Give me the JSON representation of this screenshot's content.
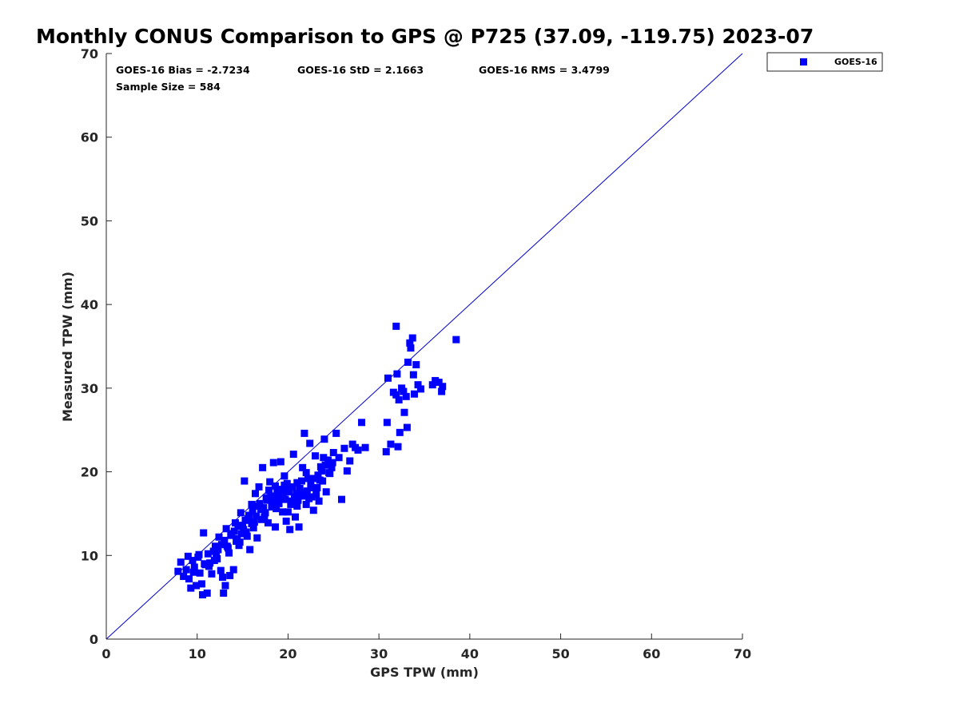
{
  "title": "Monthly CONUS Comparison to GPS @ P725 (37.09, -119.75) 2023-07",
  "stats": {
    "bias": "GOES-16 Bias = -2.7234",
    "std": "GOES-16 StD = 2.1663",
    "rms": "GOES-16 RMS = 3.4799",
    "sample": "Sample Size = 584"
  },
  "legend": {
    "label": "GOES-16"
  },
  "colors": {
    "series": "#0000ff",
    "line": "#0000cc",
    "axis": "#262626"
  },
  "chart_data": {
    "type": "scatter",
    "xlabel": "GPS TPW (mm)",
    "ylabel": "Measured TPW (mm)",
    "xlim": [
      0,
      70
    ],
    "ylim": [
      0,
      70
    ],
    "xticks": [
      0,
      10,
      20,
      30,
      40,
      50,
      60,
      70
    ],
    "yticks": [
      0,
      10,
      20,
      30,
      40,
      50,
      60,
      70
    ],
    "grid": false,
    "legend_position": "outside-top-right",
    "reference_line": {
      "type": "identity",
      "from": [
        0,
        0
      ],
      "to": [
        70,
        70
      ]
    },
    "series": [
      {
        "name": "GOES-16",
        "marker": "square",
        "points": [
          [
            7.9,
            8.1
          ],
          [
            8.2,
            9.2
          ],
          [
            8.5,
            7.5
          ],
          [
            8.8,
            8.3
          ],
          [
            9.1,
            7.2
          ],
          [
            9.3,
            6.1
          ],
          [
            9.5,
            9.4
          ],
          [
            9.7,
            8.6
          ],
          [
            9.9,
            6.4
          ],
          [
            10.1,
            9.8
          ],
          [
            10.3,
            7.9
          ],
          [
            10.5,
            6.6
          ],
          [
            10.6,
            5.3
          ],
          [
            10.7,
            12.7
          ],
          [
            10.9,
            8.9
          ],
          [
            11.1,
            5.5
          ],
          [
            11.2,
            10.2
          ],
          [
            11.4,
            9.1
          ],
          [
            11.6,
            7.8
          ],
          [
            11.8,
            10.5
          ],
          [
            12.0,
            11.1
          ],
          [
            12.2,
            9.6
          ],
          [
            12.4,
            12.2
          ],
          [
            12.6,
            8.2
          ],
          [
            12.8,
            7.4
          ],
          [
            12.9,
            5.5
          ],
          [
            13.0,
            11.8
          ],
          [
            13.1,
            6.4
          ],
          [
            13.2,
            13.2
          ],
          [
            13.4,
            10.9
          ],
          [
            13.6,
            7.6
          ],
          [
            13.8,
            12.6
          ],
          [
            14.0,
            8.3
          ],
          [
            14.2,
            13.9
          ],
          [
            14.4,
            12.0
          ],
          [
            14.6,
            11.2
          ],
          [
            14.8,
            15.1
          ],
          [
            15.0,
            13.6
          ],
          [
            15.2,
            18.9
          ],
          [
            15.4,
            12.8
          ],
          [
            15.6,
            14.4
          ],
          [
            15.8,
            10.7
          ],
          [
            16.0,
            16.1
          ],
          [
            16.2,
            13.3
          ],
          [
            16.4,
            17.4
          ],
          [
            16.6,
            12.1
          ],
          [
            16.8,
            18.2
          ],
          [
            17.0,
            15.5
          ],
          [
            17.2,
            20.5
          ],
          [
            17.4,
            14.6
          ],
          [
            17.6,
            16.9
          ],
          [
            17.8,
            13.9
          ],
          [
            18.0,
            18.8
          ],
          [
            18.2,
            15.8
          ],
          [
            18.4,
            21.1
          ],
          [
            18.6,
            13.4
          ],
          [
            18.8,
            17.6
          ],
          [
            19.0,
            16.2
          ],
          [
            19.2,
            21.2
          ],
          [
            19.4,
            15.2
          ],
          [
            19.6,
            18.4
          ],
          [
            19.8,
            14.1
          ],
          [
            20.0,
            17.9
          ],
          [
            20.2,
            13.1
          ],
          [
            20.4,
            16.5
          ],
          [
            20.6,
            22.1
          ],
          [
            20.8,
            14.6
          ],
          [
            21.0,
            18.7
          ],
          [
            21.2,
            13.4
          ],
          [
            21.4,
            17.2
          ],
          [
            21.6,
            20.5
          ],
          [
            21.8,
            24.6
          ],
          [
            22.0,
            16.1
          ],
          [
            22.2,
            19.2
          ],
          [
            22.4,
            23.4
          ],
          [
            22.6,
            17.0
          ],
          [
            22.8,
            15.4
          ],
          [
            23.0,
            21.9
          ],
          [
            23.2,
            18.1
          ],
          [
            23.4,
            16.5
          ],
          [
            23.6,
            20.6
          ],
          [
            23.8,
            18.9
          ],
          [
            24.0,
            23.9
          ],
          [
            24.2,
            17.6
          ],
          [
            24.4,
            21.4
          ],
          [
            24.6,
            19.8
          ],
          [
            24.8,
            20.5
          ],
          [
            25.0,
            22.3
          ],
          [
            25.3,
            24.6
          ],
          [
            25.6,
            21.7
          ],
          [
            25.9,
            16.7
          ],
          [
            26.2,
            22.8
          ],
          [
            26.5,
            20.1
          ],
          [
            26.8,
            21.3
          ],
          [
            27.1,
            23.3
          ],
          [
            27.4,
            22.9
          ],
          [
            27.7,
            22.6
          ],
          [
            28.1,
            25.9
          ],
          [
            28.5,
            22.9
          ],
          [
            30.8,
            22.4
          ],
          [
            30.9,
            25.9
          ],
          [
            31.0,
            31.2
          ],
          [
            31.3,
            23.3
          ],
          [
            31.6,
            29.5
          ],
          [
            31.9,
            29.2
          ],
          [
            31.9,
            37.4
          ],
          [
            32.0,
            31.7
          ],
          [
            32.1,
            23.0
          ],
          [
            32.2,
            28.6
          ],
          [
            32.3,
            24.7
          ],
          [
            32.5,
            30.0
          ],
          [
            32.7,
            29.6
          ],
          [
            32.8,
            27.1
          ],
          [
            33.0,
            29.0
          ],
          [
            33.1,
            25.3
          ],
          [
            33.2,
            33.1
          ],
          [
            33.4,
            35.4
          ],
          [
            33.5,
            34.8
          ],
          [
            33.7,
            36.0
          ],
          [
            33.8,
            31.6
          ],
          [
            33.9,
            29.3
          ],
          [
            34.1,
            32.8
          ],
          [
            34.3,
            30.4
          ],
          [
            34.6,
            29.9
          ],
          [
            35.9,
            30.4
          ],
          [
            36.2,
            30.9
          ],
          [
            36.6,
            30.7
          ],
          [
            36.9,
            29.6
          ],
          [
            37.0,
            30.2
          ],
          [
            38.5,
            35.8
          ],
          [
            9.0,
            9.9
          ],
          [
            9.6,
            8.0
          ],
          [
            10.2,
            10.1
          ],
          [
            10.8,
            9.0
          ],
          [
            11.3,
            8.7
          ],
          [
            11.9,
            9.4
          ],
          [
            12.3,
            10.7
          ],
          [
            12.7,
            11.3
          ],
          [
            13.3,
            11.1
          ],
          [
            13.7,
            12.4
          ],
          [
            14.1,
            12.9
          ],
          [
            14.5,
            13.5
          ],
          [
            14.9,
            12.6
          ],
          [
            15.3,
            14.2
          ],
          [
            15.7,
            14.8
          ],
          [
            16.1,
            15.3
          ],
          [
            16.5,
            14.7
          ],
          [
            16.9,
            16.2
          ],
          [
            17.3,
            15.7
          ],
          [
            17.7,
            16.6
          ],
          [
            18.1,
            17.1
          ],
          [
            18.5,
            16.8
          ],
          [
            18.9,
            17.3
          ],
          [
            19.3,
            17.9
          ],
          [
            19.7,
            16.7
          ],
          [
            20.1,
            17.6
          ],
          [
            20.5,
            18.2
          ],
          [
            20.9,
            17.4
          ],
          [
            21.3,
            18.0
          ],
          [
            21.7,
            17.1
          ],
          [
            22.1,
            17.7
          ],
          [
            22.5,
            18.5
          ],
          [
            22.9,
            19.2
          ],
          [
            23.3,
            19.6
          ],
          [
            23.7,
            20.1
          ],
          [
            24.1,
            20.8
          ],
          [
            24.5,
            19.9
          ],
          [
            24.9,
            21.1
          ],
          [
            14.3,
            11.7
          ],
          [
            15.1,
            13.1
          ],
          [
            16.3,
            14.0
          ],
          [
            16.7,
            15.9
          ],
          [
            17.5,
            15.1
          ],
          [
            17.9,
            17.8
          ],
          [
            18.3,
            16.3
          ],
          [
            18.7,
            15.6
          ],
          [
            19.1,
            16.9
          ],
          [
            19.5,
            17.5
          ],
          [
            19.9,
            18.6
          ],
          [
            20.3,
            16.1
          ],
          [
            20.7,
            17.0
          ],
          [
            21.1,
            16.6
          ],
          [
            21.5,
            18.9
          ],
          [
            21.9,
            17.5
          ],
          [
            22.3,
            16.8
          ],
          [
            22.7,
            18.1
          ],
          [
            23.1,
            17.3
          ],
          [
            23.5,
            19.0
          ],
          [
            12.1,
            9.9
          ],
          [
            13.5,
            10.3
          ],
          [
            14.7,
            11.6
          ],
          [
            15.5,
            12.3
          ],
          [
            16.0,
            13.8
          ],
          [
            17.1,
            14.3
          ],
          [
            18.6,
            18.3
          ],
          [
            19.6,
            19.5
          ],
          [
            20.0,
            15.2
          ],
          [
            21.0,
            15.9
          ],
          [
            22.0,
            19.9
          ],
          [
            23.9,
            21.7
          ]
        ]
      }
    ]
  }
}
